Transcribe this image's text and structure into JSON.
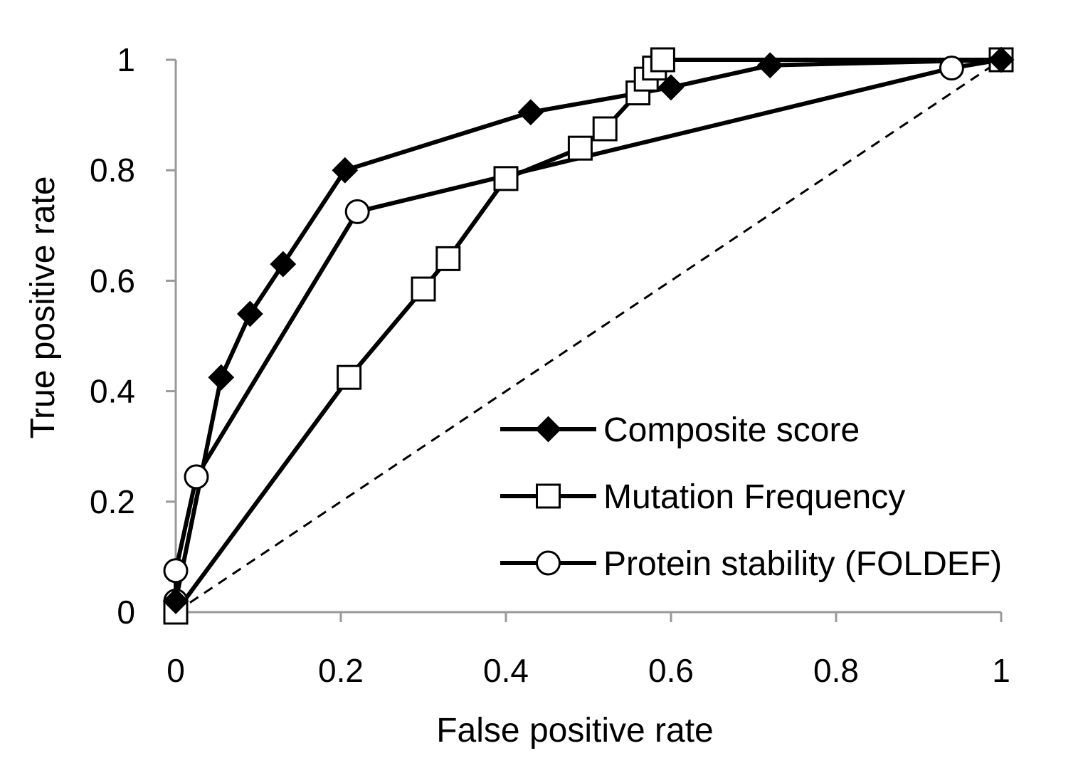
{
  "chart_data": {
    "type": "line",
    "xlabel": "False positive rate",
    "ylabel": "True positive rate",
    "xlim": [
      0,
      1
    ],
    "ylim": [
      0,
      1
    ],
    "x_ticks": [
      "0",
      "0.2",
      "0.4",
      "0.6",
      "0.8",
      "1"
    ],
    "y_ticks": [
      "0",
      "0.2",
      "0.4",
      "0.6",
      "0.8",
      "1"
    ],
    "grid": false,
    "legend_position": "bottom-right",
    "colors": {
      "line": "#000000",
      "axis": "#999999",
      "fill_open": "#ffffff",
      "fill_solid": "#000000"
    },
    "series": [
      {
        "name": "Composite score",
        "marker": "diamond",
        "x": [
          0,
          0.055,
          0.09,
          0.13,
          0.205,
          0.43,
          0.6,
          0.72,
          1
        ],
        "y": [
          0.02,
          0.425,
          0.54,
          0.63,
          0.8,
          0.905,
          0.95,
          0.99,
          1
        ]
      },
      {
        "name": "Mutation Frequency",
        "marker": "square",
        "x": [
          0,
          0.21,
          0.3,
          0.33,
          0.4,
          0.49,
          0.52,
          0.56,
          0.57,
          0.58,
          0.59,
          1
        ],
        "y": [
          0,
          0.425,
          0.585,
          0.64,
          0.785,
          0.84,
          0.875,
          0.94,
          0.965,
          0.985,
          1,
          1
        ]
      },
      {
        "name": "Protein stability (FOLDEF)",
        "marker": "circle",
        "x": [
          0,
          0,
          0.025,
          0.22,
          0.94,
          1
        ],
        "y": [
          0.02,
          0.075,
          0.245,
          0.725,
          0.985,
          1
        ]
      },
      {
        "name": "",
        "marker": "none",
        "dashed": true,
        "x": [
          0,
          1
        ],
        "y": [
          0,
          1
        ]
      }
    ]
  }
}
